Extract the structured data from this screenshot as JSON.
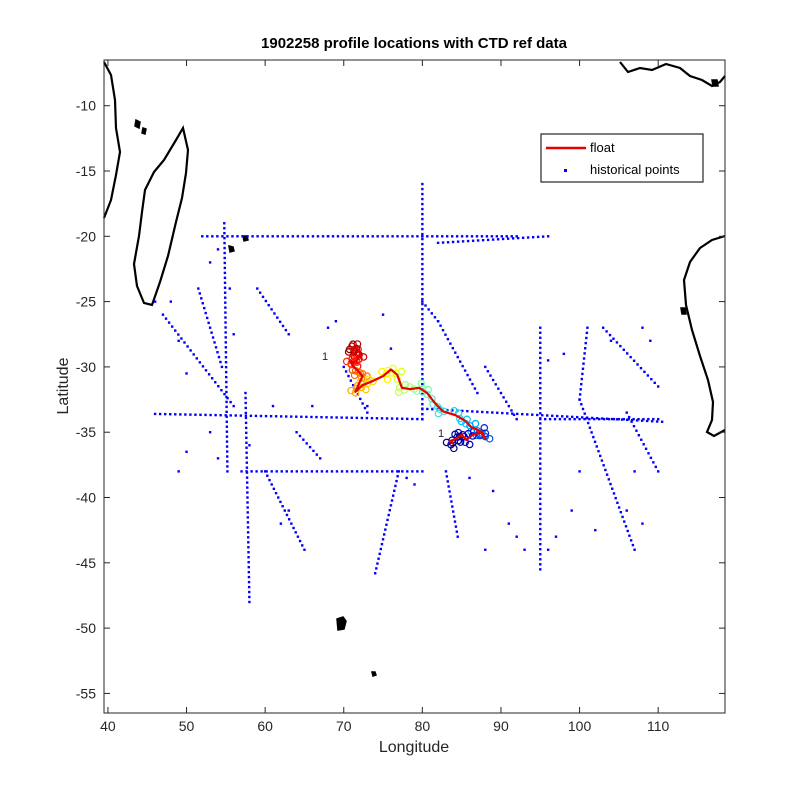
{
  "chart_data": {
    "type": "scatter",
    "title": "1902258 profile locations with CTD ref data",
    "xlabel": "Longitude",
    "ylabel": "Latitude",
    "xlim": [
      39.5,
      118.5
    ],
    "ylim": [
      -56.5,
      -6.5
    ],
    "xticks": [
      40,
      50,
      60,
      70,
      80,
      90,
      100,
      110
    ],
    "yticks": [
      -10,
      -15,
      -20,
      -25,
      -30,
      -35,
      -40,
      -45,
      -50,
      -55
    ],
    "xtick_labels": [
      "40",
      "50",
      "60",
      "70",
      "80",
      "90",
      "100",
      "110"
    ],
    "ytick_labels": [
      "-10",
      "-15",
      "-20",
      "-25",
      "-30",
      "-35",
      "-40",
      "-45",
      "-50",
      "-55"
    ],
    "grid": false,
    "legend": {
      "placement": "top-right",
      "entries": [
        "float",
        "historical points"
      ]
    },
    "colors": {
      "float_track": "#e60000",
      "historical_points": "#0000ff",
      "coastline": "#000000"
    },
    "series": [
      {
        "name": "float",
        "type": "line",
        "points": [
          [
            71.3,
            -29.0
          ],
          [
            70.9,
            -28.6
          ],
          [
            71.6,
            -28.5
          ],
          [
            72.1,
            -28.9
          ],
          [
            71.8,
            -29.4
          ],
          [
            71.2,
            -29.7
          ],
          [
            70.8,
            -29.5
          ],
          [
            71.1,
            -29.9
          ],
          [
            71.8,
            -30.3
          ],
          [
            72.4,
            -30.7
          ],
          [
            72.0,
            -31.2
          ],
          [
            71.5,
            -31.9
          ],
          [
            72.4,
            -31.4
          ],
          [
            73.6,
            -31.1
          ],
          [
            75.0,
            -30.7
          ],
          [
            76.0,
            -30.2
          ],
          [
            76.8,
            -30.6
          ],
          [
            77.4,
            -31.6
          ],
          [
            78.4,
            -31.7
          ],
          [
            79.6,
            -31.6
          ],
          [
            80.6,
            -32.0
          ],
          [
            81.5,
            -32.7
          ],
          [
            82.6,
            -33.4
          ],
          [
            84.2,
            -33.7
          ],
          [
            85.4,
            -34.1
          ],
          [
            86.2,
            -34.6
          ],
          [
            87.3,
            -34.9
          ],
          [
            88.0,
            -35.5
          ],
          [
            87.6,
            -35.0
          ],
          [
            86.4,
            -35.2
          ],
          [
            85.6,
            -35.6
          ],
          [
            85.0,
            -35.2
          ],
          [
            84.3,
            -35.5
          ],
          [
            83.5,
            -35.7
          ],
          [
            84.0,
            -35.9
          ]
        ]
      },
      {
        "name": "historical points",
        "type": "scatter",
        "segments": [
          [
            [
              52,
              -20
            ],
            [
              68,
              -20
            ]
          ],
          [
            [
              68,
              -20
            ],
            [
              80,
              -20
            ]
          ],
          [
            [
              80,
              -20
            ],
            [
              92,
              -20
            ]
          ],
          [
            [
              80,
              -16
            ],
            [
              80,
              -34
            ]
          ],
          [
            [
              54.8,
              -19
            ],
            [
              55.2,
              -38
            ]
          ],
          [
            [
              46,
              -33.6
            ],
            [
              80,
              -34
            ]
          ],
          [
            [
              80,
              -33.2
            ],
            [
              110.5,
              -34.2
            ]
          ],
          [
            [
              57.5,
              -32
            ],
            [
              58,
              -48
            ]
          ],
          [
            [
              57,
              -38
            ],
            [
              80,
              -38
            ]
          ],
          [
            [
              95,
              -27
            ],
            [
              95,
              -45.5
            ]
          ],
          [
            [
              95,
              -34
            ],
            [
              110,
              -34
            ]
          ],
          [
            [
              80,
              -25
            ],
            [
              82,
              -26.5
            ]
          ],
          [
            [
              82,
              -26.5
            ],
            [
              87,
              -32
            ]
          ],
          [
            [
              101,
              -27
            ],
            [
              100,
              -32.5
            ]
          ],
          [
            [
              100,
              -32.5
            ],
            [
              107,
              -44
            ]
          ],
          [
            [
              103,
              -27
            ],
            [
              110,
              -31.5
            ]
          ],
          [
            [
              47,
              -26
            ],
            [
              56,
              -33
            ]
          ],
          [
            [
              60,
              -38
            ],
            [
              65,
              -44
            ]
          ],
          [
            [
              77,
              -38
            ],
            [
              74,
              -45.8
            ]
          ],
          [
            [
              82,
              -20.5
            ],
            [
              96,
              -20
            ]
          ],
          [
            [
              59,
              -24
            ],
            [
              63,
              -27.5
            ]
          ],
          [
            [
              88,
              -30
            ],
            [
              92,
              -34
            ]
          ],
          [
            [
              106,
              -33.5
            ],
            [
              110,
              -38
            ]
          ],
          [
            [
              51.5,
              -24
            ],
            [
              54.5,
              -30
            ]
          ],
          [
            [
              64,
              -35
            ],
            [
              67,
              -37
            ]
          ],
          [
            [
              83,
              -38
            ],
            [
              84.5,
              -43
            ]
          ],
          [
            [
              70,
              -30
            ],
            [
              73,
              -33.5
            ]
          ]
        ],
        "scattered": [
          [
            46,
            -25
          ],
          [
            48,
            -25
          ],
          [
            49,
            -28
          ],
          [
            50,
            -30.5
          ],
          [
            53,
            -22
          ],
          [
            54,
            -21
          ],
          [
            55.5,
            -24
          ],
          [
            56,
            -27.5
          ],
          [
            61,
            -33
          ],
          [
            62,
            -42
          ],
          [
            63,
            -41
          ],
          [
            66,
            -33
          ],
          [
            68,
            -27
          ],
          [
            69,
            -26.5
          ],
          [
            73,
            -33
          ],
          [
            75,
            -26
          ],
          [
            76,
            -28.6
          ],
          [
            78,
            -38.5
          ],
          [
            79,
            -39
          ],
          [
            86,
            -38.5
          ],
          [
            89,
            -39.5
          ],
          [
            88,
            -44
          ],
          [
            91,
            -42
          ],
          [
            92,
            -43
          ],
          [
            93,
            -44
          ],
          [
            96,
            -44
          ],
          [
            97,
            -43
          ],
          [
            99,
            -41
          ],
          [
            100,
            -38
          ],
          [
            102,
            -42.5
          ],
          [
            104,
            -28
          ],
          [
            108,
            -27
          ],
          [
            109,
            -28
          ],
          [
            106,
            -41
          ],
          [
            107,
            -38
          ],
          [
            108,
            -42
          ],
          [
            98,
            -29
          ],
          [
            96,
            -29.5
          ],
          [
            50,
            -36.5
          ],
          [
            49,
            -38
          ],
          [
            53,
            -35
          ],
          [
            54,
            -37
          ],
          [
            58,
            -36
          ]
        ]
      }
    ],
    "float_profile_color_ramp": [
      "#7f0000",
      "#ff0000",
      "#ff8c00",
      "#ffff00",
      "#7fffb0",
      "#00bfff",
      "#0000cd",
      "#00007f"
    ],
    "annotations": [
      "1",
      "1"
    ]
  }
}
